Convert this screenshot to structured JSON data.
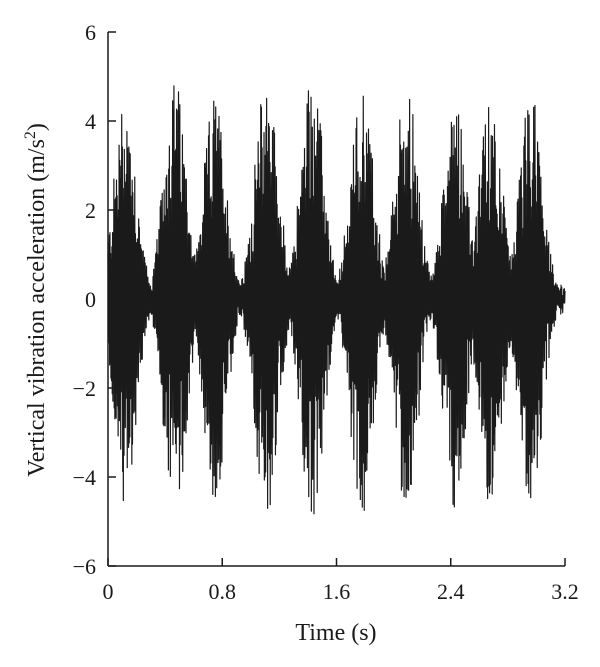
{
  "chart_data": {
    "type": "line",
    "title": "",
    "xlabel": "Time (s)",
    "ylabel_main": "Vertical vibration acceleration (m/s",
    "ylabel_sup": "2",
    "ylabel_close": ")",
    "xlim": [
      0,
      3.2
    ],
    "ylim": [
      -6,
      6
    ],
    "xticks": [
      0,
      0.8,
      1.6,
      2.4,
      3.2
    ],
    "xtick_labels": [
      "0",
      "0.8",
      "1.6",
      "2.4",
      "3.2"
    ],
    "yticks": [
      -6,
      -4,
      -2,
      0,
      2,
      4,
      6
    ],
    "ytick_labels": [
      "−6",
      "−4",
      "−2",
      "0",
      "2",
      "4",
      "6"
    ],
    "grid": false,
    "line_color": "#1a1a1a",
    "bursts": [
      {
        "t": 0.12,
        "amp": 4.6
      },
      {
        "t": 0.47,
        "amp": 5.0
      },
      {
        "t": 0.75,
        "amp": 4.6
      },
      {
        "t": 1.11,
        "amp": 5.1
      },
      {
        "t": 1.43,
        "amp": 5.2
      },
      {
        "t": 1.78,
        "amp": 4.9
      },
      {
        "t": 2.09,
        "amp": 4.9
      },
      {
        "t": 2.43,
        "amp": 4.8
      },
      {
        "t": 2.68,
        "amp": 4.6
      },
      {
        "t": 2.96,
        "amp": 4.7
      }
    ],
    "series": [
      {
        "values_note": "dense oscillation, bursts near each time value above, baseline about ±0.3"
      }
    ]
  }
}
